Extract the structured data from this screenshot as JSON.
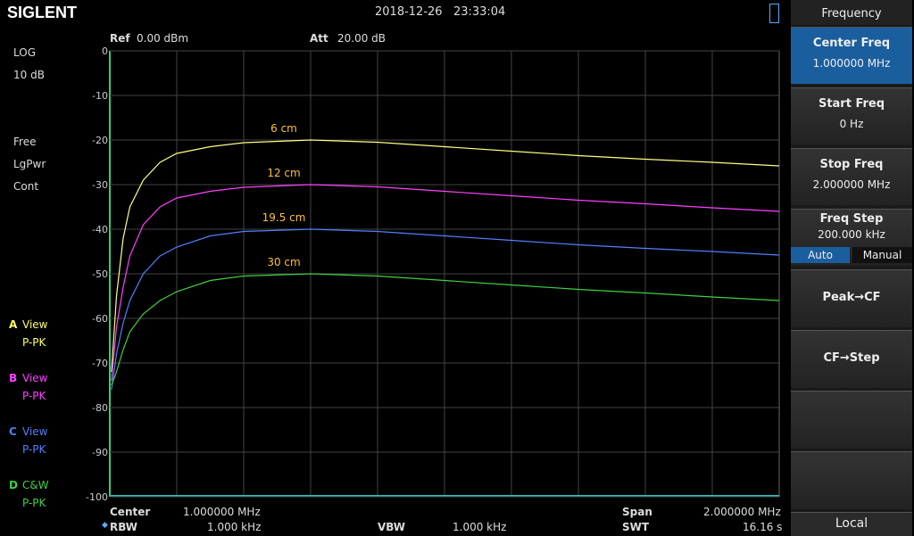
{
  "header": {
    "brand": "SIGLENT",
    "datetime": "2018-12-26   23:33:04"
  },
  "left_panel": {
    "scale": "LOG",
    "div": "10 dB",
    "trigger": "Free",
    "detector": "LgPwr",
    "sweep": "Cont",
    "traces": [
      {
        "letter": "A",
        "mode": "View",
        "det": "P-PK"
      },
      {
        "letter": "B",
        "mode": "View",
        "det": "P-PK"
      },
      {
        "letter": "C",
        "mode": "View",
        "det": "P-PK"
      },
      {
        "letter": "D",
        "mode": "C&W",
        "det": "P-PK"
      }
    ]
  },
  "chart_data": {
    "type": "line",
    "ref_label": "Ref",
    "ref_value": "0.00 dBm",
    "att_label": "Att",
    "att_value": "20.00 dB",
    "x": [
      0.005,
      0.02,
      0.04,
      0.06,
      0.1,
      0.15,
      0.2,
      0.3,
      0.4,
      0.6,
      0.8,
      1.0,
      1.2,
      1.4,
      1.6,
      1.8,
      2.0
    ],
    "xlim": [
      0,
      2
    ],
    "ylim": [
      -100,
      0
    ],
    "yticks": [
      0,
      -10,
      -20,
      -30,
      -40,
      -50,
      -60,
      -70,
      -80,
      -90,
      -100
    ],
    "grid": true,
    "series": [
      {
        "name": "6 cm",
        "color": "#ffff80",
        "values": [
          -72,
          -55,
          -42,
          -35,
          -29,
          -25,
          -23,
          -21.5,
          -20.6,
          -20,
          -20.5,
          -21.5,
          -22.5,
          -23.5,
          -24.3,
          -25,
          -25.8
        ]
      },
      {
        "name": "12 cm",
        "color": "#ff40ff",
        "values": [
          -74,
          -62,
          -53,
          -46,
          -39,
          -35,
          -33,
          -31.5,
          -30.6,
          -30,
          -30.5,
          -31.5,
          -32.5,
          -33.5,
          -34.3,
          -35.2,
          -36
        ]
      },
      {
        "name": "19.5 cm",
        "color": "#5080ff",
        "values": [
          -76,
          -68,
          -61,
          -56,
          -50,
          -46,
          -44,
          -41.5,
          -40.5,
          -40,
          -40.5,
          -41.5,
          -42.5,
          -43.5,
          -44.3,
          -45,
          -45.8
        ]
      },
      {
        "name": "30 cm",
        "color": "#40d040",
        "values": [
          -75,
          -72,
          -67,
          -63,
          -59,
          -56,
          -54,
          -51.5,
          -50.5,
          -50,
          -50.5,
          -51.5,
          -52.5,
          -53.5,
          -54.3,
          -55.2,
          -56
        ]
      }
    ]
  },
  "bottom": {
    "center_label": "Center",
    "center_value": "1.000000 MHz",
    "span_label": "Span",
    "span_value": "2.000000 MHz",
    "rbw_label": "RBW",
    "rbw_value": "1.000 kHz",
    "vbw_label": "VBW",
    "vbw_value": "1.000 kHz",
    "swt_label": "SWT",
    "swt_value": "16.16 s"
  },
  "menu": {
    "title": "Frequency",
    "center_freq": {
      "label": "Center Freq",
      "value": "1.000000 MHz"
    },
    "start_freq": {
      "label": "Start Freq",
      "value": "0 Hz"
    },
    "stop_freq": {
      "label": "Stop Freq",
      "value": "2.000000 MHz"
    },
    "freq_step": {
      "label": "Freq Step",
      "value": "200.000 kHz",
      "auto": "Auto",
      "manual": "Manual"
    },
    "peak_cf": "Peak→CF",
    "cf_step": "CF→Step",
    "footer": "Local"
  }
}
